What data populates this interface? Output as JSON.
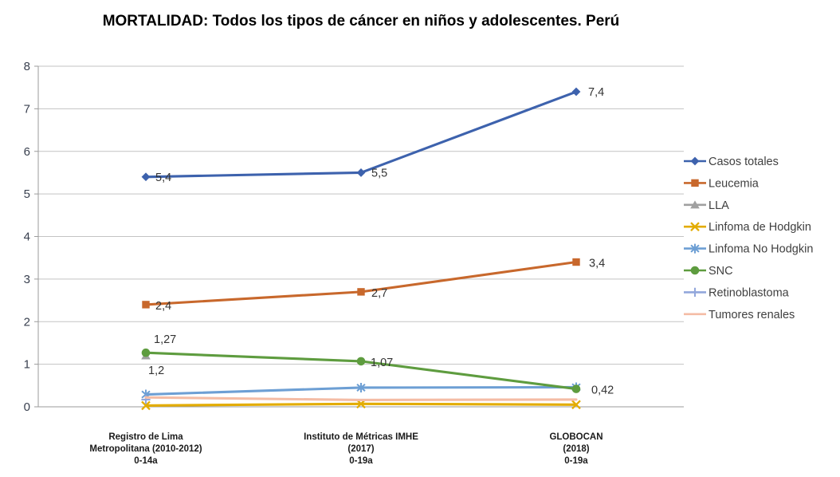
{
  "title": "MORTALIDAD: Todos los tipos de cáncer en niños y adolescentes. Perú",
  "chart_data": {
    "type": "line",
    "title": "MORTALIDAD: Todos los tipos de cáncer en niños y adolescentes. Perú",
    "grid": true,
    "legend_position": "right",
    "categories": [
      [
        "Registro de Lima",
        "Metropolitana (2010-2012)",
        "0-14a"
      ],
      [
        "Instituto de Métricas IMHE",
        "(2017)",
        "0-19a"
      ],
      [
        "GLOBOCAN",
        "(2018)",
        "0-19a"
      ]
    ],
    "y_axis": {
      "min": 0,
      "max": 8,
      "step": 1,
      "tick_labels": [
        "0",
        "1",
        "2",
        "3",
        "4",
        "5",
        "6",
        "7",
        "8"
      ]
    },
    "series": [
      {
        "name": "Casos totales",
        "marker": "diamond",
        "color": "#3D62AD",
        "values": [
          5.4,
          5.5,
          7.4
        ],
        "data_labels": [
          "5,4",
          "5,5",
          "7,4"
        ]
      },
      {
        "name": "Leucemia",
        "marker": "square",
        "color": "#C8682C",
        "values": [
          2.4,
          2.7,
          3.4
        ],
        "data_labels": [
          "2,4",
          "2,7",
          "3,4"
        ]
      },
      {
        "name": "LLA",
        "marker": "triangle",
        "color": "#A0A0A0",
        "values": [
          1.2,
          null,
          null
        ],
        "data_labels": [
          "1,2",
          null,
          null
        ]
      },
      {
        "name": "Linfoma de Hodgkin",
        "marker": "x",
        "color": "#E3AC00",
        "values": [
          0.03,
          0.07,
          0.05
        ],
        "data_labels": [
          null,
          null,
          null
        ]
      },
      {
        "name": "Linfoma No Hodgkin",
        "marker": "asterisk",
        "color": "#6D9FD4",
        "values": [
          0.29,
          0.45,
          0.46
        ],
        "data_labels": [
          null,
          null,
          null
        ]
      },
      {
        "name": "SNC",
        "marker": "circle",
        "color": "#5E9C3F",
        "values": [
          1.27,
          1.07,
          0.42
        ],
        "data_labels": [
          "1,27",
          "1,07",
          "0,42"
        ]
      },
      {
        "name": "Retinoblastoma",
        "marker": "plus",
        "color": "#92A7DB",
        "values": [
          0.17,
          null,
          null
        ],
        "data_labels": [
          null,
          null,
          null
        ]
      },
      {
        "name": "Tumores renales",
        "marker": "none",
        "color": "#F4BCA5",
        "values": [
          0.22,
          0.16,
          0.17
        ],
        "data_labels": [
          null,
          null,
          null
        ]
      }
    ],
    "colors": {
      "gridline": "#C3C3C3",
      "axis": "#9B9B9B",
      "tick_text": "#39404F",
      "category_text": "#1A1A1A",
      "data_label_text": "#333333",
      "legend_text": "#3F3F3F"
    }
  }
}
